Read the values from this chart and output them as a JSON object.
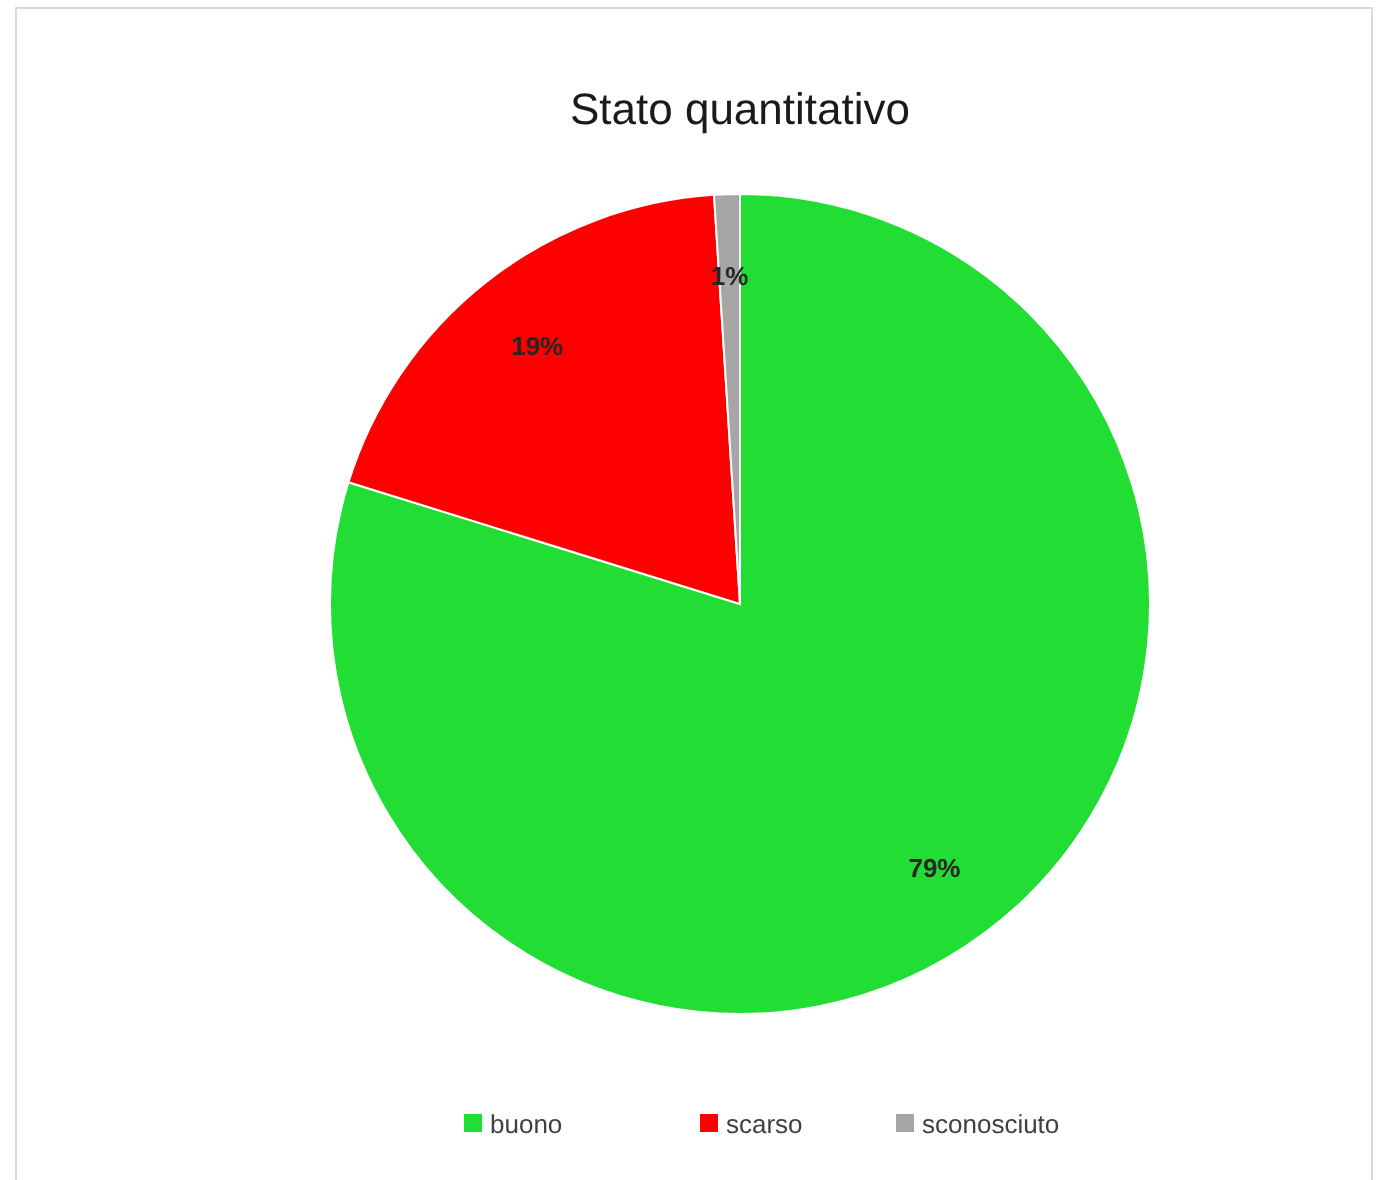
{
  "chart_data": {
    "type": "pie",
    "title": "Stato quantitativo",
    "categories": [
      "buono",
      "scarso",
      "sconosciuto"
    ],
    "values": [
      79,
      19,
      1
    ],
    "colors": [
      "#22dd33",
      "#ff0000",
      "#a6a6a6"
    ],
    "value_labels": [
      "79%",
      "19%",
      "1%"
    ],
    "legend": "bottom"
  }
}
